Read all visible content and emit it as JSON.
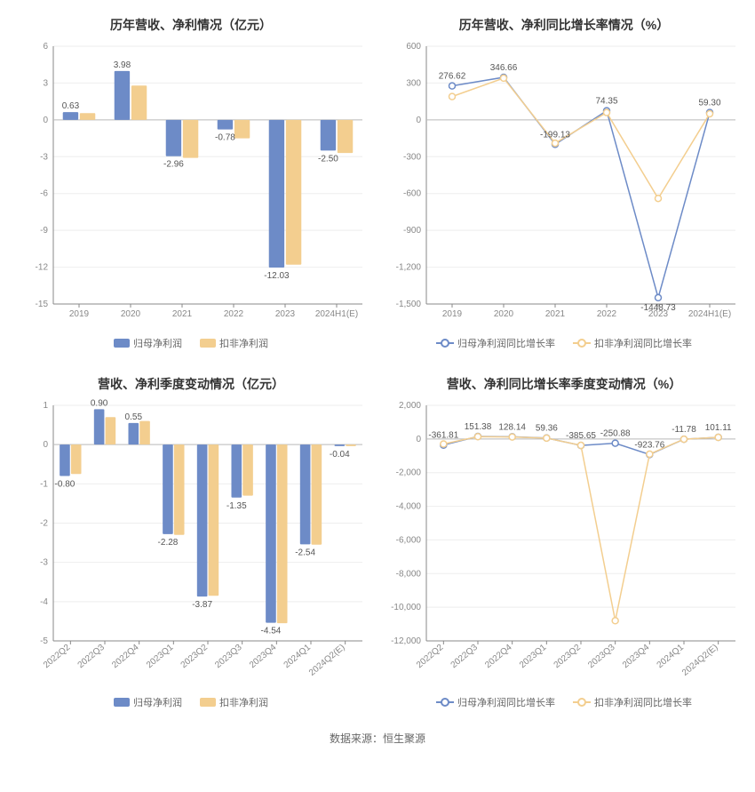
{
  "colors": {
    "series1": "#6d8bc7",
    "series2": "#f3ce8f",
    "axis": "#888888",
    "split": "#eeeeee",
    "text": "#555555",
    "bg": "#ffffff"
  },
  "footer": "数据来源：恒生聚源",
  "panels": {
    "tl": {
      "title": "历年营收、净利情况（亿元）",
      "type": "bar",
      "categories": [
        "2019",
        "2020",
        "2021",
        "2022",
        "2023",
        "2024H1(E)"
      ],
      "series": [
        {
          "name": "归母净利润",
          "color": "#6d8bc7",
          "values": [
            0.63,
            3.98,
            -2.96,
            -0.78,
            -12.03,
            -2.5
          ]
        },
        {
          "name": "扣非净利润",
          "color": "#f3ce8f",
          "values": [
            0.55,
            2.8,
            -3.1,
            -1.5,
            -11.8,
            -2.7
          ]
        }
      ],
      "labels": {
        "0": {
          "text": "0.63",
          "series": 0
        },
        "1": {
          "text": "3.98",
          "series": 0
        },
        "2": {
          "text": "-2.96",
          "series": 0
        },
        "3": {
          "text": "-0.78",
          "series": 0
        },
        "4": {
          "text": "-12.03",
          "series": 0
        },
        "5": {
          "text": "-2.50",
          "series": 0
        }
      },
      "ymin": -15,
      "ymax": 6,
      "ystep": 3,
      "label_fontsize": 10,
      "rotate_x": false,
      "legend": [
        {
          "kind": "rect",
          "color": "#6d8bc7",
          "text": "归母净利润"
        },
        {
          "kind": "rect",
          "color": "#f3ce8f",
          "text": "扣非净利润"
        }
      ]
    },
    "tr": {
      "title": "历年营收、净利同比增长率情况（%）",
      "type": "line",
      "categories": [
        "2019",
        "2020",
        "2021",
        "2022",
        "2023",
        "2024H1(E)"
      ],
      "series": [
        {
          "name": "归母净利润同比增长率",
          "color": "#6d8bc7",
          "values": [
            276.62,
            346.66,
            -199.13,
            74.35,
            -1448.73,
            59.3
          ]
        },
        {
          "name": "扣非净利润同比增长率",
          "color": "#f3ce8f",
          "values": [
            190,
            340,
            -190,
            60,
            -640,
            50
          ]
        }
      ],
      "labels_points": [
        {
          "cat": 0,
          "text": "276.62"
        },
        {
          "cat": 1,
          "text": "346.66"
        },
        {
          "cat": 2,
          "text": "-199.13"
        },
        {
          "cat": 3,
          "text": "74.35"
        },
        {
          "cat": 4,
          "text": "-1448.73",
          "below": true
        },
        {
          "cat": 5,
          "text": "59.30"
        }
      ],
      "ymin": -1500,
      "ymax": 600,
      "ystep": 300,
      "label_fontsize": 10,
      "rotate_x": false,
      "legend": [
        {
          "kind": "line",
          "color": "#6d8bc7",
          "text": "归母净利润同比增长率"
        },
        {
          "kind": "line",
          "color": "#f3ce8f",
          "text": "扣非净利润同比增长率"
        }
      ]
    },
    "bl": {
      "title": "营收、净利季度变动情况（亿元）",
      "type": "bar",
      "categories": [
        "2022Q2",
        "2022Q3",
        "2022Q4",
        "2023Q1",
        "2023Q2",
        "2023Q3",
        "2023Q4",
        "2024Q1",
        "2024Q2(E)"
      ],
      "series": [
        {
          "name": "归母净利润",
          "color": "#6d8bc7",
          "values": [
            -0.8,
            0.9,
            0.55,
            -2.28,
            -3.87,
            -1.35,
            -4.54,
            -2.54,
            -0.04
          ]
        },
        {
          "name": "扣非净利润",
          "color": "#f3ce8f",
          "values": [
            -0.75,
            0.7,
            0.6,
            -2.3,
            -3.85,
            -1.3,
            -4.55,
            -2.55,
            -0.04
          ]
        }
      ],
      "labels": {
        "0": {
          "text": "-0.80",
          "series": 0
        },
        "1": {
          "text": "0.90",
          "series": 0
        },
        "2": {
          "text": "0.55",
          "series": 0
        },
        "3": {
          "text": "-2.28",
          "series": 0
        },
        "4": {
          "text": "-3.87",
          "series": 0
        },
        "5": {
          "text": "-1.35",
          "series": 0
        },
        "6": {
          "text": "-4.54",
          "series": 0
        },
        "7": {
          "text": "-2.54",
          "series": 0
        },
        "8": {
          "text": "-0.04",
          "series": 0
        }
      },
      "ymin": -5,
      "ymax": 1,
      "ystep": 1,
      "label_fontsize": 10,
      "rotate_x": true,
      "legend": [
        {
          "kind": "rect",
          "color": "#6d8bc7",
          "text": "归母净利润"
        },
        {
          "kind": "rect",
          "color": "#f3ce8f",
          "text": "扣非净利润"
        }
      ]
    },
    "br": {
      "title": "营收、净利同比增长率季度变动情况（%）",
      "type": "line",
      "categories": [
        "2022Q2",
        "2022Q3",
        "2022Q4",
        "2023Q1",
        "2023Q2",
        "2023Q3",
        "2023Q4",
        "2024Q1",
        "2024Q2(E)"
      ],
      "series": [
        {
          "name": "归母净利润同比增长率",
          "color": "#6d8bc7",
          "values": [
            -361.81,
            151.38,
            128.14,
            59.36,
            -385.65,
            -250.88,
            -923.76,
            -11.78,
            101.11
          ]
        },
        {
          "name": "扣非净利润同比增长率",
          "color": "#f3ce8f",
          "values": [
            -300,
            140,
            120,
            55,
            -380,
            -10800,
            -900,
            -11,
            95
          ]
        }
      ],
      "labels_points": [
        {
          "cat": 0,
          "text": "-361.81"
        },
        {
          "cat": 1,
          "text": "151.38"
        },
        {
          "cat": 2,
          "text": "128.14"
        },
        {
          "cat": 3,
          "text": "59.36"
        },
        {
          "cat": 4,
          "text": "-385.65"
        },
        {
          "cat": 5,
          "text": "-250.88"
        },
        {
          "cat": 6,
          "text": "-923.76"
        },
        {
          "cat": 7,
          "text": "-11.78"
        },
        {
          "cat": 8,
          "text": "101.11"
        }
      ],
      "ymin": -12000,
      "ymax": 2000,
      "ystep": 2000,
      "label_fontsize": 10,
      "rotate_x": true,
      "legend": [
        {
          "kind": "line",
          "color": "#6d8bc7",
          "text": "归母净利润同比增长率"
        },
        {
          "kind": "line",
          "color": "#f3ce8f",
          "text": "扣非净利润同比增长率"
        }
      ]
    }
  }
}
